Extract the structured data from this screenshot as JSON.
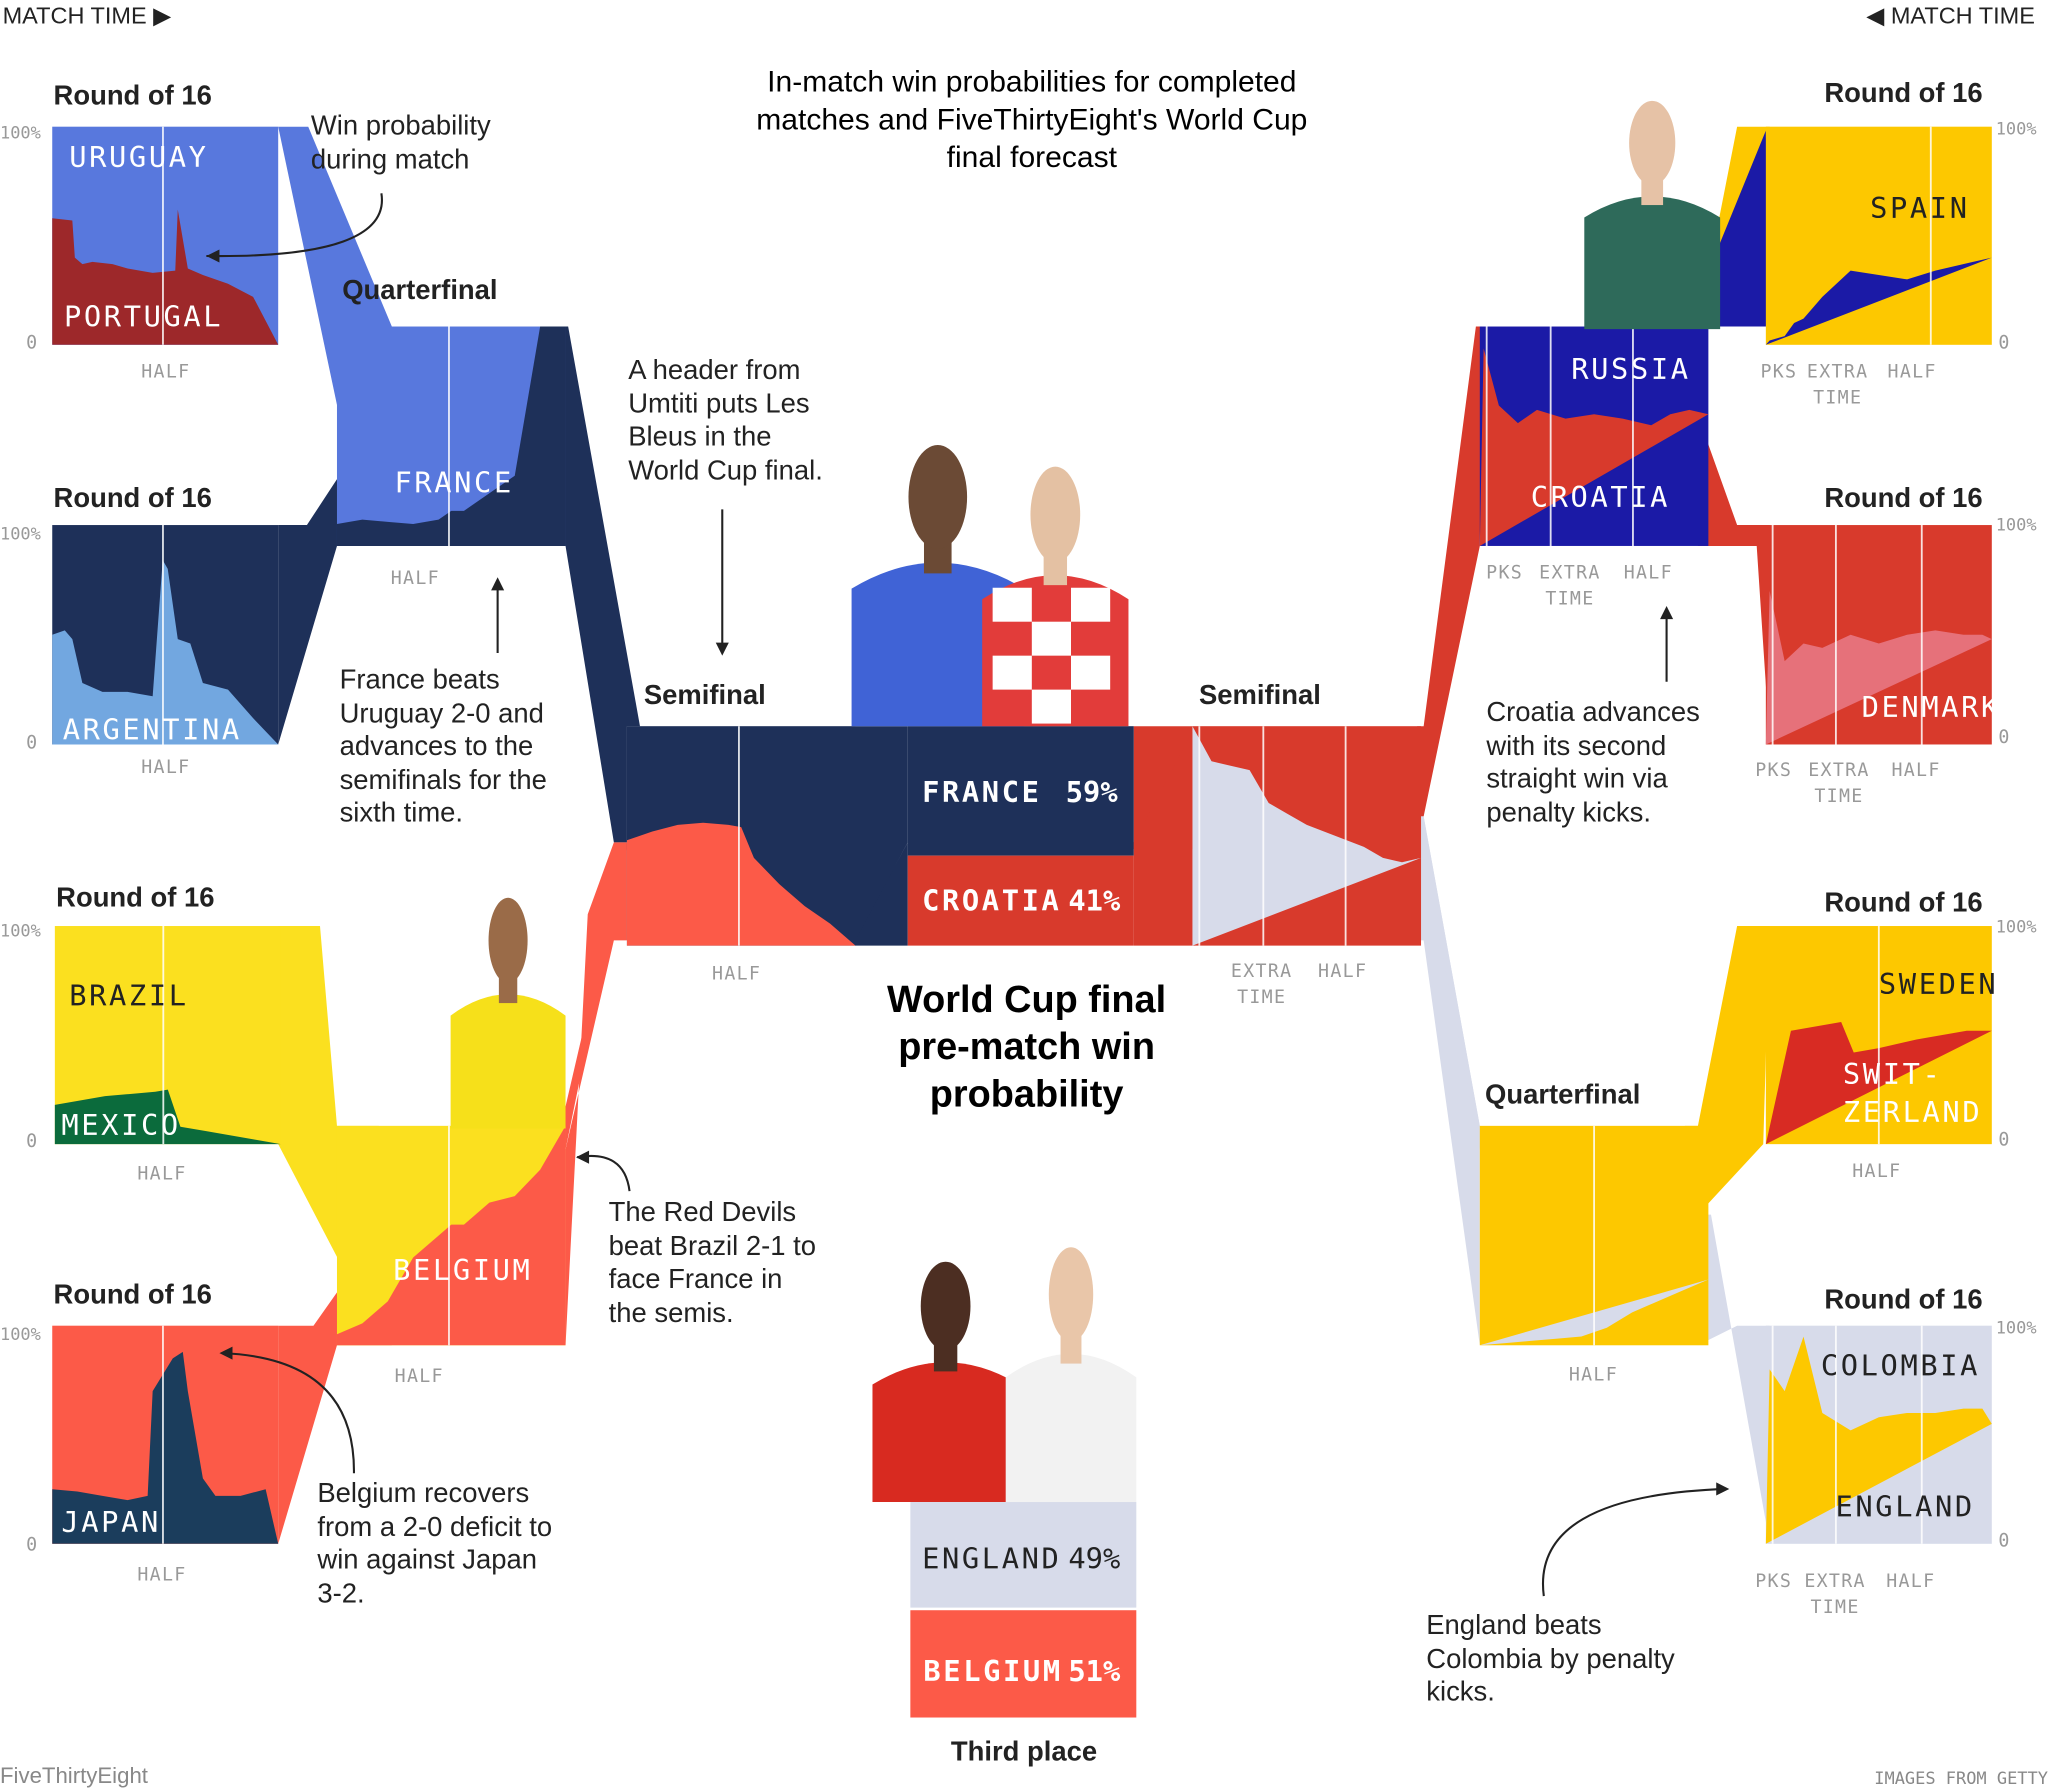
{
  "header": {
    "left_label": "MATCH TIME ▶",
    "right_label": "◀ MATCH TIME"
  },
  "title": "In-match win probabilities for completed matches and FiveThirtyEight's World Cup final forecast",
  "title_lines": [
    "In-match win probabilities for completed",
    "matches and FiveThirtyEight's World Cup",
    "final forecast"
  ],
  "center_title": [
    "World Cup final",
    "pre-match win",
    "probability"
  ],
  "third_place_label": "Third place",
  "footer": {
    "brand": "FiveThirtyEight",
    "credit": "IMAGES FROM GETTY"
  },
  "annotations": {
    "win_prob": [
      "Win probability",
      "during match"
    ],
    "umtiti": [
      "A header from",
      "Umtiti puts Les",
      "Bleus in the",
      "World Cup final."
    ],
    "france_qf": [
      "France beats",
      "Uruguay 2-0 and",
      "advances to the",
      "semifinals for the",
      "sixth time."
    ],
    "croatia_qf": [
      "Croatia advances",
      "with its second",
      "straight win via",
      "penalty kicks."
    ],
    "red_devils": [
      "The Red Devils",
      "beat Brazil 2-1 to",
      "face France in",
      "the semis."
    ],
    "belgium_japan": [
      "Belgium recovers",
      "from a 2-0 deficit to",
      "win against Japan",
      "3-2."
    ],
    "england": [
      "England beats",
      "Colombia by penalty",
      "kicks."
    ]
  },
  "axis": {
    "pct_top": "100%",
    "pct_bottom": "0",
    "half": "HALF",
    "pks": "PKS",
    "extra": "EXTRA",
    "time": "TIME"
  },
  "colors": {
    "uruguay": "#5878dd",
    "portugal": "#9d282a",
    "france": "#1e3059",
    "argentina": "#72a7e0",
    "brazil": "#fbe01f",
    "mexico": "#0b6b3c",
    "belgium": "#fc5a48",
    "japan": "#1b3d5c",
    "spain": "#fdc800",
    "russia": "#1b1aa6",
    "croatia": "#d83a2c",
    "denmark": "#e6717a",
    "sweden": "#fdc800",
    "switzerland": "#d82b23",
    "england": "#d7dbea",
    "colombia": "#fdc800"
  },
  "forecast": {
    "final": [
      {
        "team": "FRANCE",
        "pct": "59%",
        "value": 59
      },
      {
        "team": "CROATIA",
        "pct": "41%",
        "value": 41
      }
    ],
    "third": [
      {
        "team": "ENGLAND",
        "pct": "49%",
        "value": 49
      },
      {
        "team": "BELGIUM",
        "pct": "51%",
        "value": 51
      }
    ]
  },
  "chart_data": {
    "type": "area",
    "matches": [
      {
        "id": "r16-uru-por",
        "round": "Round of 16",
        "teams": [
          "URUGUAY",
          "PORTUGAL"
        ],
        "label_top": "URUGUAY",
        "label_bottom": "PORTUGAL",
        "x": [
          0,
          8,
          9,
          12,
          16,
          24,
          30,
          40,
          49,
          50,
          54,
          60,
          70,
          80,
          90
        ],
        "y": [
          58,
          57,
          40,
          37,
          38,
          37,
          35,
          33,
          34,
          62,
          35,
          32,
          28,
          22,
          0
        ]
      },
      {
        "id": "r16-fra-arg",
        "round": "Round of 16",
        "teams": [
          "FRANCE",
          "ARGENTINA"
        ],
        "label_top": "",
        "label_bottom": "ARGENTINA",
        "x": [
          0,
          5,
          8,
          12,
          20,
          30,
          40,
          44,
          46,
          50,
          55,
          60,
          70,
          80,
          90
        ],
        "y": [
          50,
          52,
          48,
          28,
          24,
          24,
          22,
          84,
          80,
          48,
          46,
          28,
          25,
          12,
          0
        ]
      },
      {
        "id": "r16-bra-mex",
        "round": "Round of 16",
        "teams": [
          "BRAZIL",
          "MEXICO"
        ],
        "label_top": "BRAZIL",
        "label_bottom": "MEXICO",
        "x": [
          0,
          10,
          20,
          30,
          40,
          45,
          50,
          55,
          60,
          70,
          80,
          90
        ],
        "y": [
          18,
          20,
          22,
          23,
          24,
          25,
          8,
          7,
          6,
          4,
          2,
          0
        ]
      },
      {
        "id": "r16-bel-jpn",
        "round": "Round of 16",
        "teams": [
          "BELGIUM",
          "JAPAN"
        ],
        "label_top": "",
        "label_bottom": "JAPAN",
        "x": [
          0,
          10,
          20,
          30,
          38,
          40,
          48,
          52,
          54,
          60,
          65,
          75,
          85,
          90
        ],
        "y": [
          25,
          24,
          22,
          20,
          22,
          70,
          85,
          88,
          70,
          30,
          22,
          22,
          25,
          0
        ]
      },
      {
        "id": "qf-uru-fra",
        "round": "Quarterfinal",
        "teams": [
          "URUGUAY",
          "FRANCE"
        ],
        "label_top": "",
        "label_bottom": "FRANCE",
        "x": [
          0,
          10,
          20,
          30,
          40,
          45,
          50,
          60,
          65,
          70,
          80,
          90
        ],
        "y": [
          10,
          12,
          11,
          10,
          12,
          16,
          16,
          24,
          28,
          32,
          100,
          100
        ]
      },
      {
        "id": "qf-bra-bel",
        "round": "Quarterfinal",
        "teams": [
          "BRAZIL",
          "BELGIUM"
        ],
        "label_top": "",
        "label_bottom": "BELGIUM",
        "x": [
          0,
          10,
          20,
          30,
          40,
          45,
          50,
          60,
          70,
          80,
          90
        ],
        "y": [
          5,
          10,
          20,
          40,
          50,
          55,
          55,
          65,
          68,
          80,
          100
        ]
      },
      {
        "id": "sf-fra-bel",
        "round": "Semifinal",
        "teams": [
          "FRANCE",
          "BELGIUM"
        ],
        "label_top": "",
        "label_bottom": "",
        "x": [
          0,
          10,
          20,
          30,
          40,
          45,
          50,
          60,
          70,
          80,
          90
        ],
        "y": [
          48,
          52,
          55,
          56,
          55,
          54,
          40,
          28,
          18,
          10,
          0
        ]
      },
      {
        "id": "r16-spa-rus",
        "round": "Round of 16",
        "teams": [
          "SPAIN",
          "RUSSIA"
        ],
        "label_top": "SPAIN",
        "label_bottom": "",
        "x": [
          0,
          10,
          20,
          30,
          45,
          60,
          75,
          90,
          100,
          105,
          110,
          118,
          120
        ],
        "y": [
          40,
          38,
          36,
          34,
          30,
          32,
          34,
          22,
          12,
          10,
          4,
          2,
          0
        ]
      },
      {
        "id": "r16-cro-den",
        "round": "Round of 16",
        "teams": [
          "CROATIA",
          "DENMARK"
        ],
        "label_top": "",
        "label_bottom": "DENMARK",
        "x": [
          0,
          5,
          15,
          30,
          45,
          60,
          75,
          90,
          100,
          110,
          118,
          120
        ],
        "y": [
          48,
          50,
          50,
          52,
          50,
          46,
          50,
          44,
          46,
          38,
          70,
          0
        ]
      },
      {
        "id": "r16-swe-sui",
        "round": "Round of 16",
        "teams": [
          "SWEDEN",
          "SWITZERLAND"
        ],
        "label_top": "SWEDEN",
        "label_bottom": "SWIT- ZERLAND",
        "x": [
          0,
          10,
          20,
          30,
          45,
          55,
          60,
          70,
          80,
          90
        ],
        "y": [
          52,
          52,
          50,
          48,
          44,
          42,
          56,
          54,
          52,
          0
        ]
      },
      {
        "id": "r16-col-eng",
        "round": "Round of 16",
        "teams": [
          "COLOMBIA",
          "ENGLAND"
        ],
        "label_top": "COLOMBIA",
        "label_bottom": "ENGLAND",
        "x": [
          0,
          5,
          15,
          30,
          45,
          60,
          75,
          90,
          100,
          110,
          118,
          120
        ],
        "y": [
          55,
          62,
          62,
          60,
          60,
          58,
          52,
          60,
          95,
          70,
          80,
          0
        ]
      },
      {
        "id": "qf-rus-cro",
        "round": "Quarterfinal",
        "teams": [
          "RUSSIA",
          "CROATIA"
        ],
        "label_top": "RUSSIA",
        "label_bottom": "CROATIA",
        "x": [
          0,
          10,
          20,
          30,
          45,
          60,
          75,
          90,
          100,
          110,
          118,
          120
        ],
        "y": [
          60,
          62,
          60,
          55,
          58,
          60,
          58,
          62,
          56,
          64,
          90,
          0
        ]
      },
      {
        "id": "qf-swe-eng",
        "round": "Quarterfinal",
        "teams": [
          "SWEDEN",
          "ENGLAND"
        ],
        "label_top": "",
        "label_bottom": "",
        "x": [
          0,
          10,
          20,
          30,
          40,
          45,
          50,
          60,
          70,
          80,
          90
        ],
        "y": [
          30,
          25,
          20,
          15,
          8,
          6,
          4,
          3,
          2,
          1,
          0
        ]
      },
      {
        "id": "sf-cro-eng",
        "round": "Semifinal",
        "teams": [
          "CROATIA",
          "ENGLAND"
        ],
        "label_top": "",
        "label_bottom": "",
        "x": [
          0,
          10,
          20,
          30,
          45,
          60,
          70,
          80,
          90,
          100,
          110,
          120
        ],
        "y": [
          40,
          38,
          40,
          45,
          50,
          55,
          60,
          65,
          80,
          82,
          84,
          100
        ]
      }
    ],
    "final_forecast": {
      "FRANCE": 59,
      "CROATIA": 41
    },
    "third_place_forecast": {
      "ENGLAND": 49,
      "BELGIUM": 51
    },
    "ylim": [
      0,
      100
    ]
  }
}
